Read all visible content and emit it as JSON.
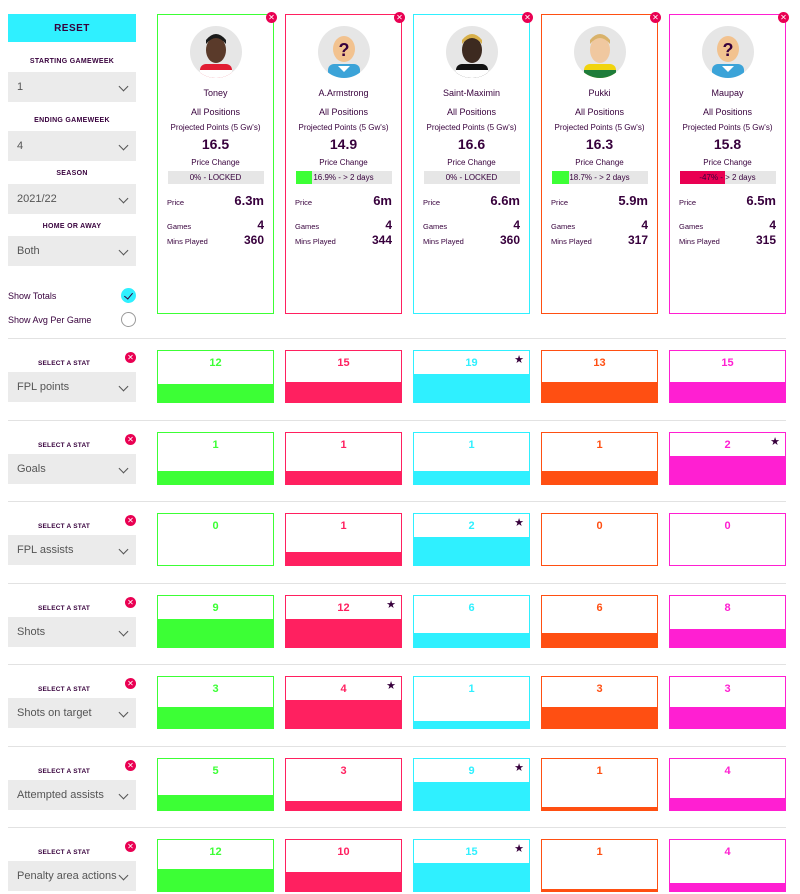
{
  "sidebar": {
    "reset_label": "RESET",
    "starting_gw_label": "STARTING GAMEWEEK",
    "starting_gw_value": "1",
    "ending_gw_label": "ENDING GAMEWEEK",
    "ending_gw_value": "4",
    "season_label": "SEASON",
    "season_value": "2021/22",
    "home_away_label": "HOME OR AWAY",
    "home_away_value": "Both",
    "show_totals_label": "Show Totals",
    "show_avg_label": "Show Avg Per Game"
  },
  "card_labels": {
    "positions": "All Positions",
    "projected": "Projected Points (5 Gw's)",
    "price_change": "Price Change",
    "price": "Price",
    "games": "Games",
    "mins": "Mins Played"
  },
  "colors": [
    "#3cff35",
    "#ff2060",
    "#2ff0ff",
    "#ff4f12",
    "#ff1fd2"
  ],
  "players": [
    {
      "name": "Toney",
      "projected": "16.5",
      "price_change": "0% - LOCKED",
      "price_change_fill": 0,
      "price": "6.3m",
      "games": "4",
      "mins": "360"
    },
    {
      "name": "A.Armstrong",
      "projected": "14.9",
      "price_change": "16.9% - > 2 days",
      "price_change_fill": 16.9,
      "price": "6m",
      "games": "4",
      "mins": "344"
    },
    {
      "name": "Saint-Maximin",
      "projected": "16.6",
      "price_change": "0% - LOCKED",
      "price_change_fill": 0,
      "price": "6.6m",
      "games": "4",
      "mins": "360"
    },
    {
      "name": "Pukki",
      "projected": "16.3",
      "price_change": "18.7% - > 2 days",
      "price_change_fill": 18.7,
      "price": "5.9m",
      "games": "4",
      "mins": "317"
    },
    {
      "name": "Maupay",
      "projected": "15.8",
      "price_change": "-47% - > 2 days",
      "price_change_fill": -47,
      "price": "6.5m",
      "games": "4",
      "mins": "315"
    }
  ],
  "stat_select_label": "SELECT A STAT",
  "stats": [
    {
      "name": "FPL points",
      "values": [
        12,
        15,
        19,
        13,
        15
      ],
      "best": 2,
      "fills": [
        0.36,
        0.4,
        0.55,
        0.4,
        0.4
      ]
    },
    {
      "name": "Goals",
      "values": [
        1,
        1,
        1,
        1,
        2
      ],
      "best": 4,
      "fills": [
        0.26,
        0.26,
        0.26,
        0.26,
        0.55
      ]
    },
    {
      "name": "FPL assists",
      "values": [
        0,
        1,
        2,
        0,
        0
      ],
      "best": 2,
      "fills": [
        0,
        0.26,
        0.55,
        0,
        0
      ]
    },
    {
      "name": "Shots",
      "values": [
        9,
        12,
        6,
        6,
        8
      ],
      "best": 1,
      "fills": [
        0.55,
        0.55,
        0.28,
        0.28,
        0.36
      ]
    },
    {
      "name": "Shots on target",
      "values": [
        3,
        4,
        1,
        3,
        3
      ],
      "best": 1,
      "fills": [
        0.42,
        0.55,
        0.14,
        0.42,
        0.42
      ]
    },
    {
      "name": "Attempted assists",
      "values": [
        5,
        3,
        9,
        1,
        4
      ],
      "best": 2,
      "fills": [
        0.3,
        0.18,
        0.55,
        0.06,
        0.24
      ]
    },
    {
      "name": "Penalty area actions",
      "values": [
        12,
        10,
        15,
        1,
        4
      ],
      "best": 2,
      "fills": [
        0.44,
        0.37,
        0.55,
        0.04,
        0.15
      ]
    }
  ]
}
